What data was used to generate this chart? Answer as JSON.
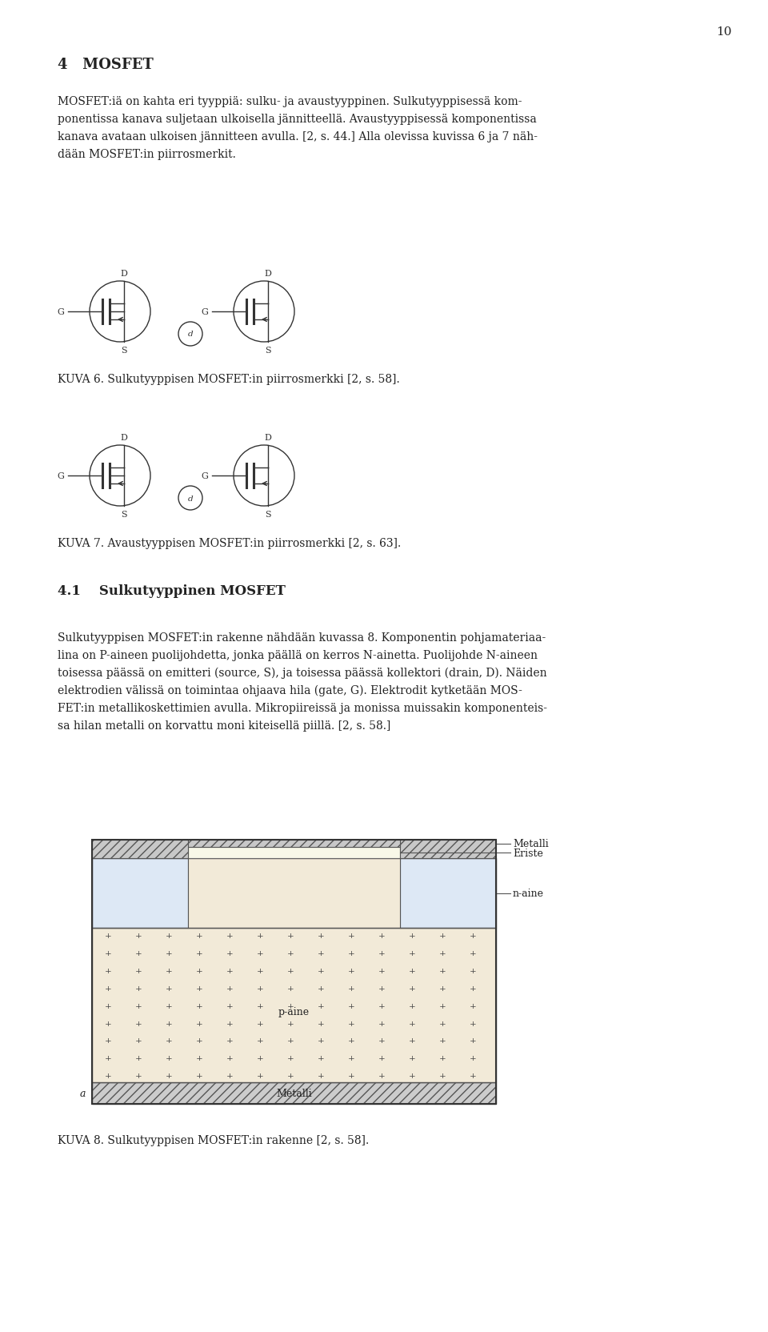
{
  "page_number": "10",
  "bg_color": "#ffffff",
  "text_color": "#222222",
  "heading": "4   MOSFET",
  "para1_lines": [
    "MOSFET:iä on kahta eri tyyppiä: sulku- ja avaustyyppinen. Sulkutyyppisessä kom-",
    "ponentissa kanava suljetaan ulkoisella jännitteellä. Avaustyyppisessä komponentissa",
    "kanava avataan ulkoisen jännitteen avulla. [2, s. 44.] Alla olevissa kuvissa 6 ja 7 näh-",
    "dään MOSFET:in piirrosmerkit."
  ],
  "kuva6_caption": "KUVA 6. Sulkutyyppisen MOSFET:in piirrosmerkki [2, s. 58].",
  "kuva7_caption": "KUVA 7. Avaustyyppisen MOSFET:in piirrosmerkki [2, s. 63].",
  "subheading": "4.1    Sulkutyyppinen MOSFET",
  "para2_lines": [
    "Sulkutyyppisen MOSFET:in rakenne nähdään kuvassa 8. Komponentin pohjamateriaa-",
    "lina on P-aineen puolijohdetta, jonka päällä on kerros N-ainetta. Puolijohde N-aineen",
    "toisessa päässä on emitteri (source, S), ja toisessa päässä kollektori (drain, D). Näiden",
    "elektrodien välissä on toimintaa ohjaava hila (gate, G). Elektrodit kytketään MOS-",
    "FET:in metallikoskettimien avulla. Mikropiireissä ja monissa muissakin komponenteis-",
    "sa hilan metalli on korvattu moni kiteisellä piillä. [2, s. 58.]"
  ],
  "kuva8_caption": "KUVA 8. Sulkutyyppisen MOSFET:in rakenne [2, s. 58].",
  "line_color": "#333333",
  "sym_color": "#333333"
}
